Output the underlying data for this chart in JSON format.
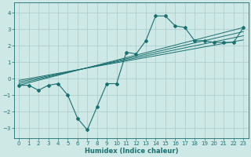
{
  "xlabel": "Humidex (Indice chaleur)",
  "bg_color": "#cde8e5",
  "grid_color": "#a8ccca",
  "line_color": "#1a7070",
  "xlim": [
    -0.5,
    23.5
  ],
  "ylim": [
    -3.6,
    4.6
  ],
  "yticks": [
    -3,
    -2,
    -1,
    0,
    1,
    2,
    3,
    4
  ],
  "xticks": [
    0,
    1,
    2,
    3,
    4,
    5,
    6,
    7,
    8,
    9,
    10,
    11,
    12,
    13,
    14,
    15,
    16,
    17,
    18,
    19,
    20,
    21,
    22,
    23
  ],
  "main_x": [
    0,
    1,
    2,
    3,
    4,
    5,
    6,
    7,
    8,
    9,
    10,
    11,
    12,
    13,
    14,
    15,
    16,
    17,
    18,
    19,
    20,
    21,
    22,
    23
  ],
  "main_y": [
    -0.4,
    -0.4,
    -0.7,
    -0.4,
    -0.3,
    -1.0,
    -2.4,
    -3.1,
    -1.7,
    -0.3,
    -0.3,
    1.6,
    1.5,
    2.3,
    3.8,
    3.8,
    3.2,
    3.1,
    2.3,
    2.3,
    2.2,
    2.2,
    2.2,
    3.1
  ],
  "linear_lines": [
    {
      "x": [
        0,
        23
      ],
      "y": [
        -0.4,
        3.1
      ]
    },
    {
      "x": [
        0,
        23
      ],
      "y": [
        -0.3,
        2.85
      ]
    },
    {
      "x": [
        0,
        23
      ],
      "y": [
        -0.2,
        2.6
      ]
    },
    {
      "x": [
        0,
        23
      ],
      "y": [
        -0.1,
        2.35
      ]
    }
  ],
  "tick_fontsize": 5.0,
  "xlabel_fontsize": 6.0,
  "marker_size": 2.0
}
